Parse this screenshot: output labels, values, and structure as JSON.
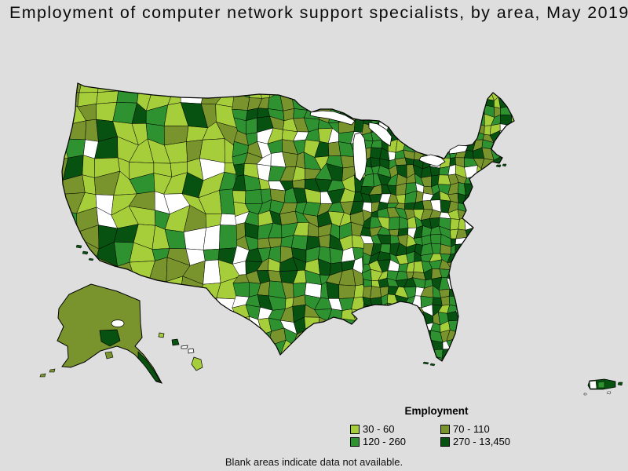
{
  "title": "Employment of computer network support specialists, by area, May 2019",
  "footer": "Blank areas indicate data not available.",
  "legend": {
    "title": "Employment",
    "items": [
      {
        "label": "30 - 60",
        "color": "#a6cd3a"
      },
      {
        "label": "70 - 110",
        "color": "#79942c"
      },
      {
        "label": "120 - 260",
        "color": "#2e9231"
      },
      {
        "label": "270 - 13,450",
        "color": "#085211"
      }
    ],
    "no_data_color": "#ffffff"
  },
  "colors": {
    "background": "#dedede",
    "boundary": "#000000",
    "no_data": "#ffffff"
  },
  "chart_data": {
    "type": "heatmap",
    "subtype": "choropleth",
    "title": "Employment of computer network support specialists, by area, May 2019",
    "geography": "United States metropolitan and nonmetropolitan areas, including Alaska, Hawaii and Puerto Rico",
    "legend_title": "Employment",
    "legend_position": "bottom-right",
    "bins": [
      {
        "label": "30 - 60",
        "min": 30,
        "max": 60,
        "color": "#a6cd3a"
      },
      {
        "label": "70 - 110",
        "min": 70,
        "max": 110,
        "color": "#79942c"
      },
      {
        "label": "120 - 260",
        "min": 120,
        "max": 260,
        "color": "#2e9231"
      },
      {
        "label": "270 - 13,450",
        "min": 270,
        "max": 13450,
        "color": "#085211"
      }
    ],
    "no_data_note": "Blank areas indicate data not available."
  }
}
